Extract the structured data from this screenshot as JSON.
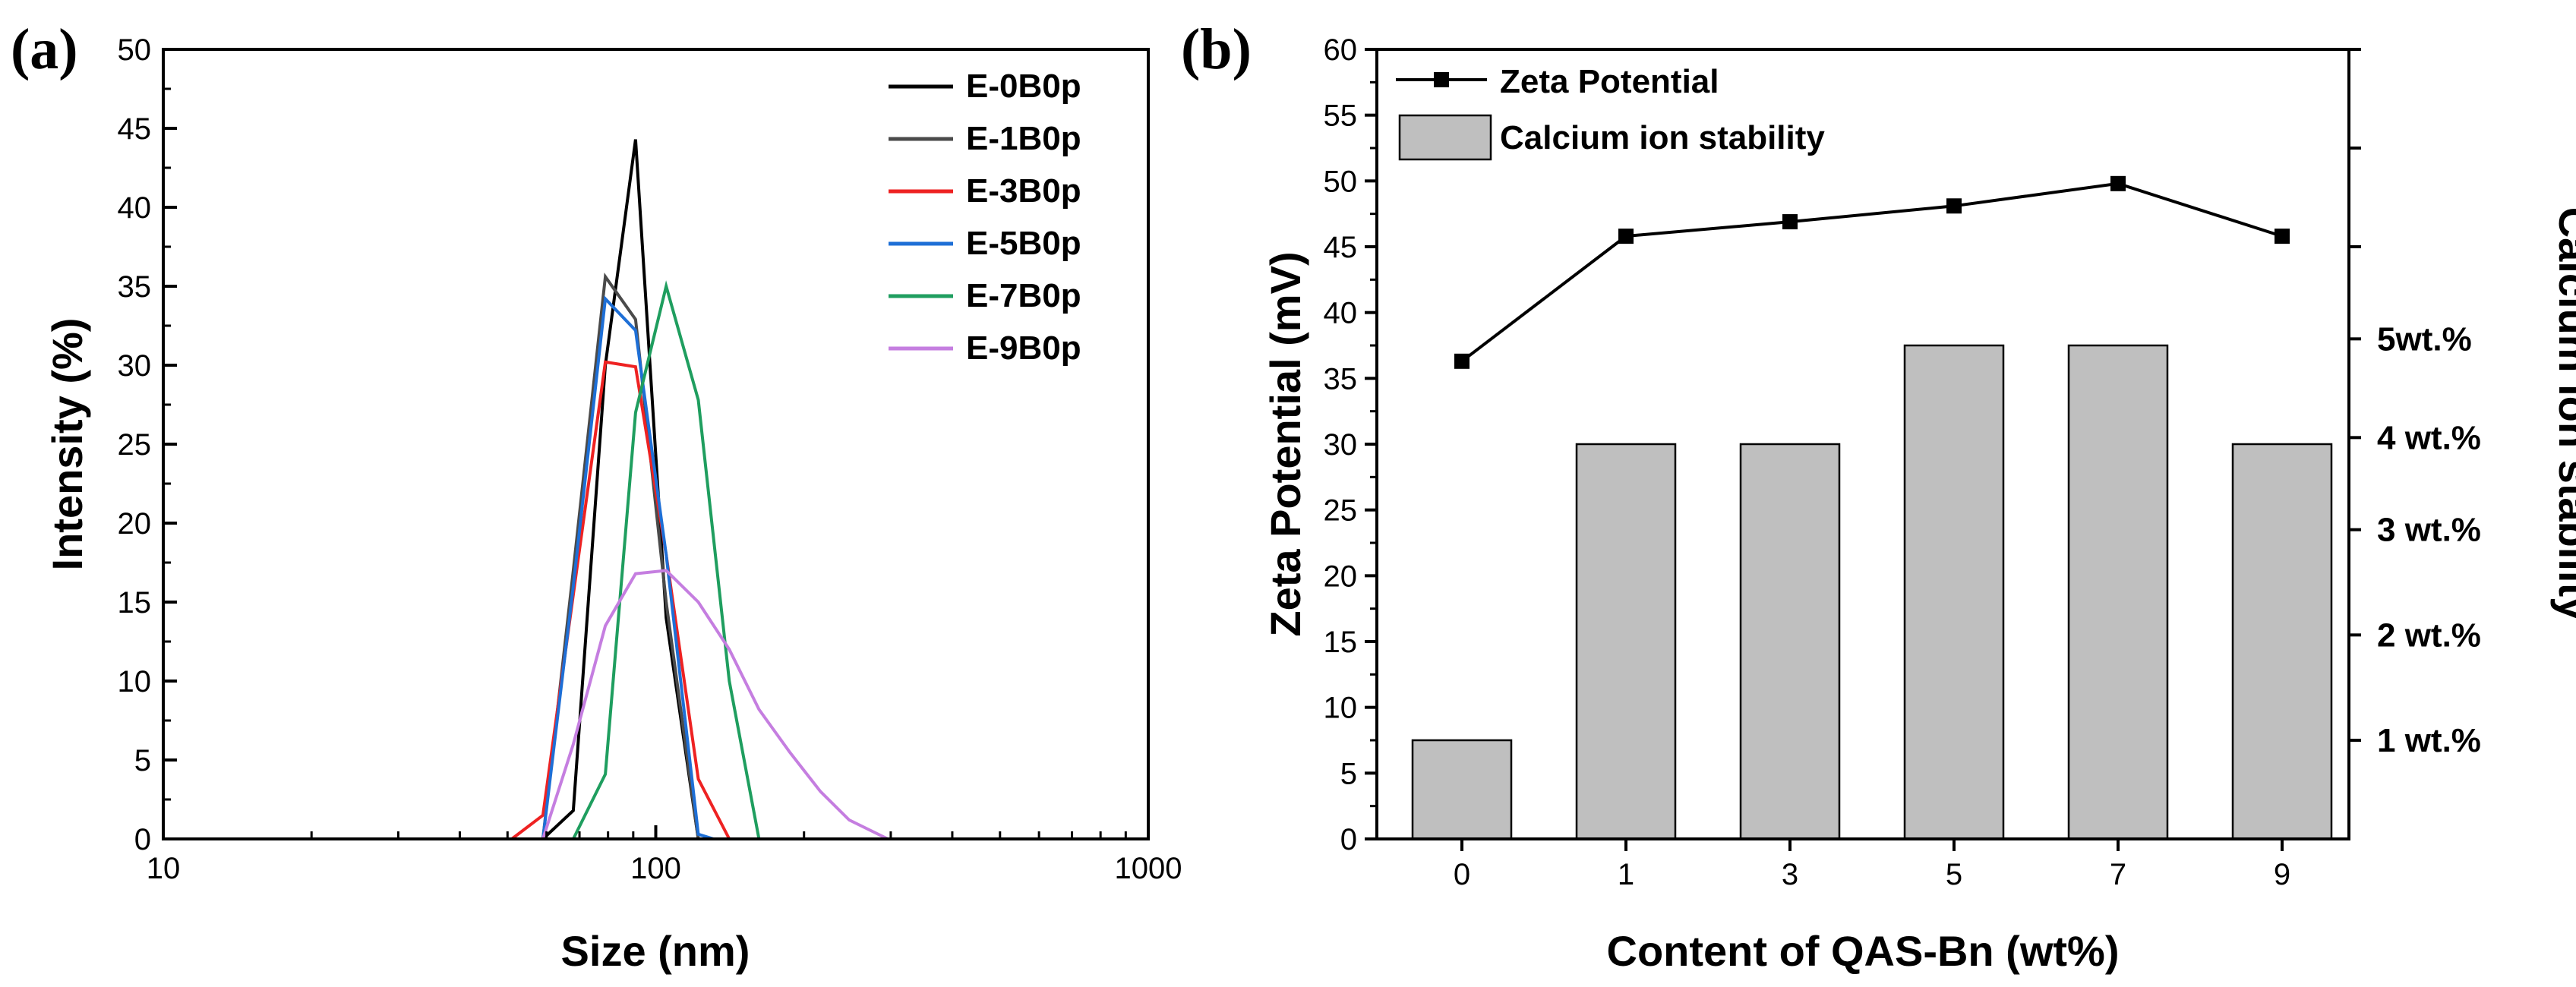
{
  "panel_a_label": "(a)",
  "panel_b_label": "(b)",
  "chart_data": [
    {
      "type": "line",
      "xscale": "log",
      "xlabel": "Size (nm)",
      "ylabel": "Intensity (%)",
      "xlim": [
        10,
        1000
      ],
      "ylim": [
        0,
        50
      ],
      "x_ticks": [
        "10",
        "100",
        "1000"
      ],
      "y_ticks": [
        "0",
        "5",
        "10",
        "15",
        "20",
        "25",
        "30",
        "35",
        "40",
        "45",
        "50"
      ],
      "legend_position": "top-right",
      "series": [
        {
          "name": "E-0B0p",
          "color": "#000000",
          "x": [
            59,
            68,
            79,
            91,
            105,
            122
          ],
          "y": [
            0,
            1.8,
            30,
            44.3,
            14,
            0
          ]
        },
        {
          "name": "E-1B0p",
          "color": "#4a4a4a",
          "x": [
            59,
            68,
            79,
            91,
            105,
            122
          ],
          "y": [
            0,
            17,
            35.6,
            32.9,
            15,
            0
          ]
        },
        {
          "name": "E-3B0p",
          "color": "#ee2222",
          "x": [
            51,
            59,
            79,
            91,
            105,
            122,
            141
          ],
          "y": [
            0,
            1.5,
            30.2,
            29.9,
            18,
            3.8,
            0
          ]
        },
        {
          "name": "E-5B0p",
          "color": "#1e6fd6",
          "x": [
            59,
            68,
            79,
            91,
            105,
            122,
            131
          ],
          "y": [
            0,
            16,
            34.2,
            32.2,
            18,
            0.3,
            0
          ]
        },
        {
          "name": "E-7B0p",
          "color": "#1f9e5f",
          "x": [
            68,
            79,
            91,
            105,
            122,
            141,
            162
          ],
          "y": [
            0,
            4.1,
            27,
            35,
            27.8,
            10,
            0
          ]
        },
        {
          "name": "E-9B0p",
          "color": "#c57ee0",
          "x": [
            59,
            68,
            79,
            91,
            105,
            122,
            141,
            162,
            187,
            216,
            247,
            296
          ],
          "y": [
            0,
            6,
            13.5,
            16.8,
            17,
            15,
            12,
            8.2,
            5.5,
            3,
            1.2,
            0
          ]
        }
      ]
    },
    {
      "type": "bar",
      "xlabel": "Content of QAS-Bn (wt%)",
      "ylabel": "Zeta Potential (mV)",
      "ylabel_right": "Calcium ion stability",
      "categories": [
        "0",
        "1",
        "3",
        "5",
        "7",
        "9"
      ],
      "ylim": [
        0,
        60
      ],
      "y_ticks": [
        "0",
        "5",
        "10",
        "15",
        "20",
        "25",
        "30",
        "35",
        "40",
        "45",
        "50",
        "55",
        "60"
      ],
      "right_ticks": [
        {
          "label": "1 wt.%",
          "value": 7.5
        },
        {
          "label": "2 wt.%",
          "value": 15.5
        },
        {
          "label": "3 wt.%",
          "value": 23.5
        },
        {
          "label": "4 wt.%",
          "value": 30.5
        },
        {
          "label": "5wt.%",
          "value": 38
        }
      ],
      "legend_position": "top-left",
      "series": [
        {
          "name": "Zeta Potential",
          "kind": "line",
          "color": "#000000",
          "values": [
            36.3,
            45.8,
            46.9,
            48.1,
            49.8,
            45.8
          ]
        },
        {
          "name": "Calcium ion stability",
          "kind": "bar",
          "color": "#bfbfbf",
          "values": [
            7.5,
            30,
            30,
            37.5,
            37.5,
            30
          ]
        }
      ]
    }
  ]
}
